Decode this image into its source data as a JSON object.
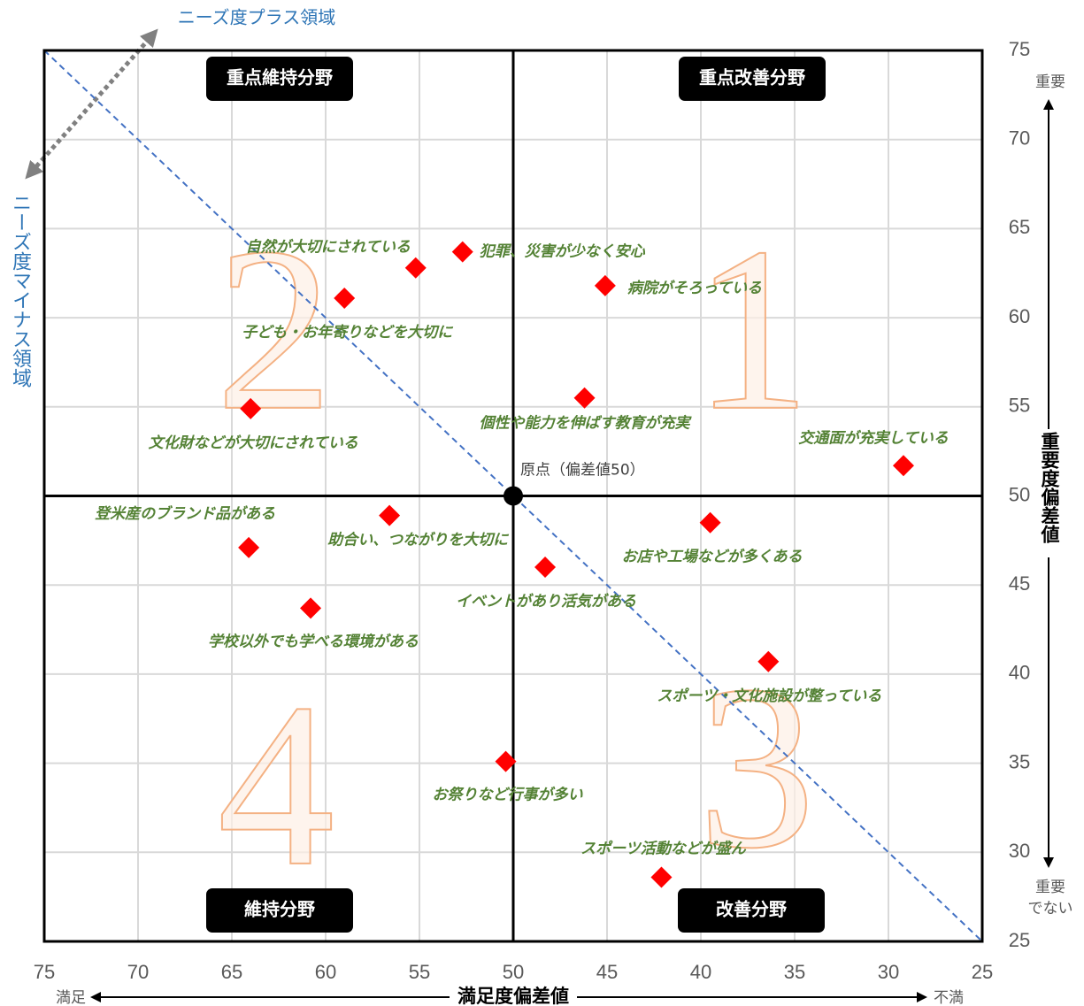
{
  "chart_data": {
    "type": "scatter",
    "x_label": "満足度偏差値",
    "y_label": "重要度偏差値",
    "xlim": [
      75,
      25
    ],
    "ylim": [
      25,
      75
    ],
    "xticks": [
      75,
      70,
      65,
      60,
      55,
      50,
      45,
      40,
      35,
      30,
      25
    ],
    "yticks": [
      25,
      30,
      35,
      40,
      45,
      50,
      55,
      60,
      65,
      70,
      75
    ],
    "grid": true,
    "color": "#ff0000",
    "label_color": "#548235",
    "diagonal": true,
    "labels": [
      "自然が大切にされている",
      "犯罪、災害が少なく安心",
      "病院がそろっている",
      "子ども・お年寄りなどを大切に",
      "個性や能力を伸ばす教育が充実",
      "文化財などが大切にされている",
      "交通面が充実している",
      "登米産のブランド品がある",
      "助合い、つながりを大切に",
      "お店や工場などが多くある",
      "イベントがあり活気がある",
      "学校以外でも学べる環境がある",
      "スポーツ・文化施設が整っている",
      "お祭りなど行事が多い",
      "スポーツ活動などが盛ん"
    ],
    "x": [
      55.2,
      52.7,
      45.1,
      59.0,
      46.2,
      64.0,
      29.2,
      64.1,
      56.6,
      39.5,
      48.3,
      60.8,
      36.4,
      50.4,
      42.1
    ],
    "y": [
      62.8,
      63.7,
      61.8,
      61.1,
      55.5,
      54.9,
      51.7,
      47.1,
      48.9,
      48.5,
      46.0,
      43.7,
      40.7,
      35.1,
      28.6
    ],
    "origin": {
      "x": 50,
      "y": 50,
      "label": "原点（偏差値50）"
    },
    "quadrants": [
      {
        "label": "重点改善分野",
        "number": "1"
      },
      {
        "label": "重点維持分野",
        "number": "2"
      },
      {
        "label": "改善分野",
        "number": "3"
      },
      {
        "label": "維持分野",
        "number": "4"
      }
    ],
    "annotations": {
      "plus_region": "ニーズ度プラス領域",
      "minus_region": "ニーズ度マイナス領域",
      "y_high": "重要",
      "y_low": [
        "重要",
        "でない"
      ],
      "x_high": "満足",
      "x_low": "不満"
    }
  }
}
